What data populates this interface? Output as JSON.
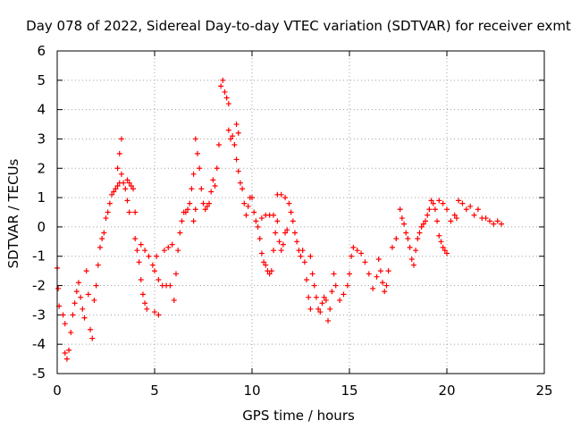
{
  "chart_data": {
    "type": "scatter",
    "title": "Day 078 of 2022, Sidereal Day-to-day VTEC variation (SDTVAR) for receiver exmt",
    "xlabel": "GPS time / hours",
    "ylabel": "SDTVAR / TECUs",
    "xlim": [
      0,
      25
    ],
    "ylim": [
      -5,
      6
    ],
    "xticks": [
      "0",
      "5",
      "10",
      "15",
      "20",
      "25"
    ],
    "yticks": [
      "-5",
      "-4",
      "-3",
      "-2",
      "-1",
      "0",
      "1",
      "2",
      "3",
      "4",
      "5",
      "6"
    ],
    "grid": true,
    "marker": "+",
    "color": "#ff0000",
    "series": [
      {
        "name": "SDTVAR",
        "points": [
          [
            0.0,
            -1.4
          ],
          [
            0.05,
            -2.1
          ],
          [
            0.1,
            -2.7
          ],
          [
            0.3,
            -3.0
          ],
          [
            0.4,
            -3.3
          ],
          [
            0.4,
            -4.3
          ],
          [
            0.5,
            -4.5
          ],
          [
            0.6,
            -4.2
          ],
          [
            0.7,
            -3.6
          ],
          [
            0.8,
            -3.0
          ],
          [
            0.9,
            -2.6
          ],
          [
            1.0,
            -2.2
          ],
          [
            1.1,
            -1.9
          ],
          [
            1.2,
            -2.4
          ],
          [
            1.3,
            -2.8
          ],
          [
            1.4,
            -3.1
          ],
          [
            1.5,
            -1.5
          ],
          [
            1.6,
            -2.3
          ],
          [
            1.7,
            -3.5
          ],
          [
            1.8,
            -3.8
          ],
          [
            1.9,
            -2.5
          ],
          [
            2.0,
            -2.0
          ],
          [
            2.1,
            -1.3
          ],
          [
            2.2,
            -0.7
          ],
          [
            2.3,
            -0.4
          ],
          [
            2.4,
            -0.2
          ],
          [
            2.5,
            0.3
          ],
          [
            2.6,
            0.5
          ],
          [
            2.7,
            0.8
          ],
          [
            2.8,
            1.1
          ],
          [
            2.9,
            1.2
          ],
          [
            3.0,
            1.3
          ],
          [
            3.1,
            1.4
          ],
          [
            3.2,
            1.5
          ],
          [
            3.3,
            1.8
          ],
          [
            3.1,
            2.0
          ],
          [
            3.2,
            2.5
          ],
          [
            3.3,
            3.0
          ],
          [
            3.4,
            1.5
          ],
          [
            3.5,
            1.3
          ],
          [
            3.6,
            0.9
          ],
          [
            3.7,
            0.5
          ],
          [
            3.6,
            1.6
          ],
          [
            3.7,
            1.5
          ],
          [
            3.8,
            1.4
          ],
          [
            3.9,
            1.3
          ],
          [
            4.0,
            0.5
          ],
          [
            4.0,
            -0.4
          ],
          [
            4.1,
            -0.8
          ],
          [
            4.2,
            -1.2
          ],
          [
            4.3,
            -1.8
          ],
          [
            4.4,
            -2.3
          ],
          [
            4.5,
            -2.6
          ],
          [
            4.6,
            -2.8
          ],
          [
            4.3,
            -0.6
          ],
          [
            4.5,
            -0.8
          ],
          [
            4.7,
            -1.0
          ],
          [
            4.9,
            -1.3
          ],
          [
            5.0,
            -1.5
          ],
          [
            5.0,
            -2.9
          ],
          [
            5.2,
            -3.0
          ],
          [
            5.1,
            -1.0
          ],
          [
            5.2,
            -1.8
          ],
          [
            5.4,
            -2.0
          ],
          [
            5.6,
            -2.0
          ],
          [
            5.8,
            -2.0
          ],
          [
            5.5,
            -0.8
          ],
          [
            5.7,
            -0.7
          ],
          [
            5.9,
            -0.6
          ],
          [
            6.0,
            -2.5
          ],
          [
            6.1,
            -1.6
          ],
          [
            6.2,
            -0.8
          ],
          [
            6.3,
            -0.2
          ],
          [
            6.4,
            0.2
          ],
          [
            6.5,
            0.5
          ],
          [
            6.6,
            0.5
          ],
          [
            6.7,
            0.6
          ],
          [
            6.8,
            0.8
          ],
          [
            6.9,
            1.3
          ],
          [
            7.0,
            1.8
          ],
          [
            7.0,
            0.2
          ],
          [
            7.1,
            0.6
          ],
          [
            7.1,
            3.0
          ],
          [
            7.2,
            2.5
          ],
          [
            7.3,
            2.0
          ],
          [
            7.4,
            1.3
          ],
          [
            7.5,
            0.8
          ],
          [
            7.6,
            0.6
          ],
          [
            7.7,
            0.7
          ],
          [
            7.8,
            0.8
          ],
          [
            7.9,
            1.2
          ],
          [
            8.0,
            1.6
          ],
          [
            8.1,
            1.4
          ],
          [
            8.2,
            2.0
          ],
          [
            8.3,
            2.8
          ],
          [
            8.4,
            4.8
          ],
          [
            8.5,
            5.0
          ],
          [
            8.6,
            4.6
          ],
          [
            8.7,
            4.4
          ],
          [
            8.8,
            4.2
          ],
          [
            8.8,
            3.3
          ],
          [
            8.9,
            3.0
          ],
          [
            9.0,
            3.1
          ],
          [
            9.1,
            2.8
          ],
          [
            9.2,
            2.3
          ],
          [
            9.3,
            1.9
          ],
          [
            9.4,
            1.5
          ],
          [
            9.3,
            3.2
          ],
          [
            9.2,
            3.5
          ],
          [
            9.5,
            1.3
          ],
          [
            9.6,
            0.8
          ],
          [
            9.7,
            0.4
          ],
          [
            9.8,
            0.7
          ],
          [
            9.9,
            1.0
          ],
          [
            10.0,
            1.0
          ],
          [
            10.1,
            0.5
          ],
          [
            10.2,
            0.2
          ],
          [
            10.3,
            0.0
          ],
          [
            10.4,
            -0.4
          ],
          [
            10.5,
            -0.9
          ],
          [
            10.6,
            -1.2
          ],
          [
            10.7,
            -1.3
          ],
          [
            10.8,
            -1.5
          ],
          [
            10.9,
            -1.6
          ],
          [
            11.0,
            -1.5
          ],
          [
            11.1,
            -0.8
          ],
          [
            11.2,
            -0.2
          ],
          [
            10.5,
            0.3
          ],
          [
            10.7,
            0.4
          ],
          [
            10.9,
            0.4
          ],
          [
            11.1,
            0.4
          ],
          [
            11.3,
            0.2
          ],
          [
            11.4,
            -0.5
          ],
          [
            11.5,
            -0.8
          ],
          [
            11.6,
            -0.6
          ],
          [
            11.7,
            -0.2
          ],
          [
            11.8,
            -0.1
          ],
          [
            11.3,
            1.1
          ],
          [
            11.5,
            1.1
          ],
          [
            11.7,
            1.0
          ],
          [
            11.9,
            0.8
          ],
          [
            12.0,
            0.5
          ],
          [
            12.1,
            0.2
          ],
          [
            12.2,
            -0.2
          ],
          [
            12.3,
            -0.5
          ],
          [
            12.4,
            -0.8
          ],
          [
            12.5,
            -1.0
          ],
          [
            12.6,
            -0.8
          ],
          [
            12.7,
            -1.2
          ],
          [
            12.8,
            -1.8
          ],
          [
            12.9,
            -2.4
          ],
          [
            13.0,
            -2.8
          ],
          [
            13.0,
            -1.0
          ],
          [
            13.1,
            -1.6
          ],
          [
            13.2,
            -2.0
          ],
          [
            13.3,
            -2.4
          ],
          [
            13.4,
            -2.8
          ],
          [
            13.5,
            -2.9
          ],
          [
            13.6,
            -2.6
          ],
          [
            13.7,
            -2.4
          ],
          [
            13.8,
            -2.5
          ],
          [
            13.9,
            -3.2
          ],
          [
            14.0,
            -2.8
          ],
          [
            14.1,
            -2.2
          ],
          [
            14.2,
            -1.6
          ],
          [
            14.3,
            -2.0
          ],
          [
            14.5,
            -2.5
          ],
          [
            14.7,
            -2.3
          ],
          [
            14.9,
            -2.0
          ],
          [
            15.0,
            -1.6
          ],
          [
            15.1,
            -1.0
          ],
          [
            15.2,
            -0.7
          ],
          [
            15.4,
            -0.8
          ],
          [
            15.6,
            -0.9
          ],
          [
            15.8,
            -1.2
          ],
          [
            16.0,
            -1.6
          ],
          [
            16.2,
            -2.1
          ],
          [
            16.4,
            -1.7
          ],
          [
            16.5,
            -1.1
          ],
          [
            16.6,
            -1.5
          ],
          [
            16.7,
            -1.9
          ],
          [
            16.8,
            -2.2
          ],
          [
            16.9,
            -2.0
          ],
          [
            17.0,
            -1.5
          ],
          [
            17.2,
            -0.7
          ],
          [
            17.4,
            -0.4
          ],
          [
            17.6,
            0.6
          ],
          [
            17.7,
            0.3
          ],
          [
            17.8,
            0.1
          ],
          [
            17.9,
            -0.2
          ],
          [
            18.0,
            -0.4
          ],
          [
            18.1,
            -0.7
          ],
          [
            18.2,
            -1.1
          ],
          [
            18.3,
            -1.3
          ],
          [
            18.4,
            -0.8
          ],
          [
            18.5,
            -0.4
          ],
          [
            18.6,
            -0.2
          ],
          [
            18.7,
            0.0
          ],
          [
            18.8,
            0.1
          ],
          [
            18.9,
            0.2
          ],
          [
            19.0,
            0.4
          ],
          [
            19.1,
            0.6
          ],
          [
            19.2,
            0.9
          ],
          [
            19.3,
            0.8
          ],
          [
            19.4,
            0.6
          ],
          [
            19.5,
            0.2
          ],
          [
            19.6,
            -0.3
          ],
          [
            19.7,
            -0.5
          ],
          [
            19.8,
            -0.7
          ],
          [
            19.9,
            -0.8
          ],
          [
            20.0,
            -0.9
          ],
          [
            19.6,
            0.9
          ],
          [
            19.8,
            0.8
          ],
          [
            20.0,
            0.6
          ],
          [
            20.2,
            0.2
          ],
          [
            20.4,
            0.4
          ],
          [
            20.5,
            0.3
          ],
          [
            20.6,
            0.9
          ],
          [
            20.8,
            0.8
          ],
          [
            21.0,
            0.6
          ],
          [
            21.2,
            0.7
          ],
          [
            21.4,
            0.4
          ],
          [
            21.6,
            0.6
          ],
          [
            21.8,
            0.3
          ],
          [
            22.0,
            0.3
          ],
          [
            22.2,
            0.2
          ],
          [
            22.4,
            0.1
          ],
          [
            22.6,
            0.2
          ],
          [
            22.8,
            0.1
          ]
        ]
      }
    ]
  }
}
